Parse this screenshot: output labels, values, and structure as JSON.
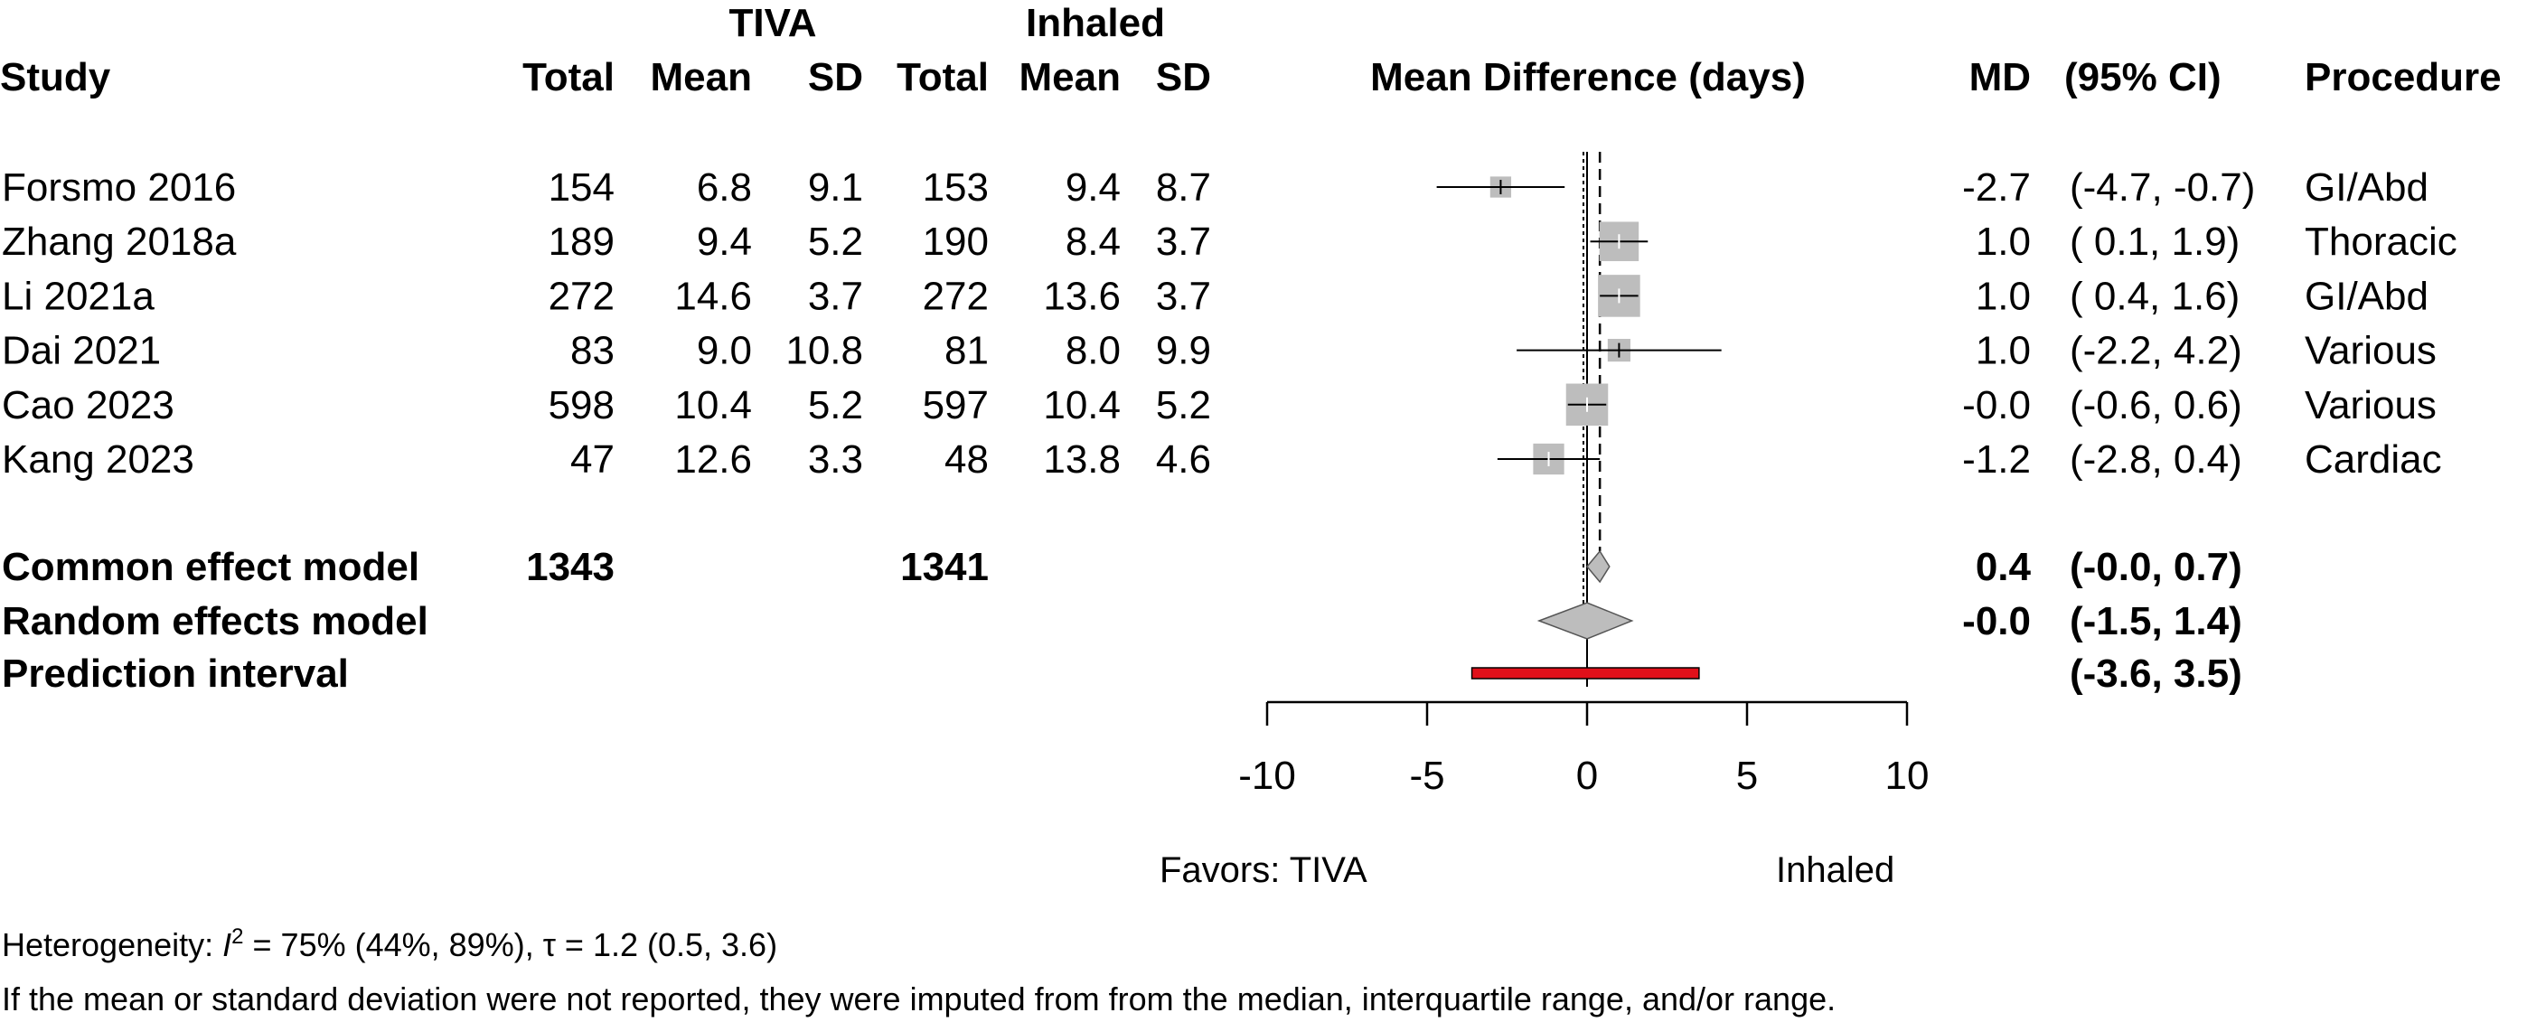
{
  "chart_data": {
    "type": "forest",
    "headers": {
      "group1": "TIVA",
      "group2": "Inhaled",
      "study": "Study",
      "total1": "Total",
      "mean1": "Mean",
      "sd1": "SD",
      "total2": "Total",
      "mean2": "Mean",
      "sd2": "SD",
      "plot": "Mean Difference (days)",
      "md": "MD",
      "ci": "(95% CI)",
      "procedure": "Procedure"
    },
    "studies": [
      {
        "study": "Forsmo 2016",
        "total1": "154",
        "mean1": "6.8",
        "sd1": "9.1",
        "total2": "153",
        "mean2": "9.4",
        "sd2": "8.7",
        "md": -2.7,
        "lower": -4.7,
        "upper": -0.7,
        "weight": 6.0,
        "md_text": "-2.7",
        "ci_text": "(-4.7, -0.7)",
        "procedure": "GI/Abd"
      },
      {
        "study": "Zhang 2018a",
        "total1": "189",
        "mean1": "9.4",
        "sd1": "5.2",
        "total2": "190",
        "mean2": "8.4",
        "sd2": "3.7",
        "md": 1.0,
        "lower": 0.1,
        "upper": 1.9,
        "weight": 21.0,
        "md_text": "1.0",
        "ci_text": "( 0.1,  1.9)",
        "procedure": "Thoracic"
      },
      {
        "study": "Li 2021a",
        "total1": "272",
        "mean1": "14.6",
        "sd1": "3.7",
        "total2": "272",
        "mean2": "13.6",
        "sd2": "3.7",
        "md": 1.0,
        "lower": 0.4,
        "upper": 1.6,
        "weight": 24.0,
        "md_text": "1.0",
        "ci_text": "( 0.4,  1.6)",
        "procedure": "GI/Abd"
      },
      {
        "study": "Dai 2021",
        "total1": "83",
        "mean1": "9.0",
        "sd1": "10.8",
        "total2": "81",
        "mean2": "8.0",
        "sd2": "9.9",
        "md": 1.0,
        "lower": -2.2,
        "upper": 4.2,
        "weight": 7.0,
        "md_text": "1.0",
        "ci_text": "(-2.2,  4.2)",
        "procedure": "Various"
      },
      {
        "study": "Cao 2023",
        "total1": "598",
        "mean1": "10.4",
        "sd1": "5.2",
        "total2": "597",
        "mean2": "10.4",
        "sd2": "5.2",
        "md": 0.0,
        "lower": -0.6,
        "upper": 0.6,
        "weight": 24.0,
        "md_text": "-0.0",
        "ci_text": "(-0.6,  0.6)",
        "procedure": "Various"
      },
      {
        "study": "Kang 2023",
        "total1": "47",
        "mean1": "12.6",
        "sd1": "3.3",
        "total2": "48",
        "mean2": "13.8",
        "sd2": "4.6",
        "md": -1.2,
        "lower": -2.8,
        "upper": 0.4,
        "weight": 13.0,
        "md_text": "-1.2",
        "ci_text": "(-2.8,  0.4)",
        "procedure": "Cardiac"
      }
    ],
    "common": {
      "label": "Common effect model",
      "total1": "1343",
      "total2": "1341",
      "md": 0.4,
      "lower": 0.0,
      "upper": 0.7,
      "md_text": "0.4",
      "ci_text": "(-0.0,  0.7)"
    },
    "random": {
      "label": "Random effects model",
      "md": 0.0,
      "lower": -1.5,
      "upper": 1.4,
      "md_text": "-0.0",
      "ci_text": "(-1.5,  1.4)"
    },
    "prediction": {
      "label": "Prediction interval",
      "lower": -3.6,
      "upper": 3.5,
      "ci_text": "(-3.6,  3.5)"
    },
    "xaxis": {
      "ticks": [
        -10,
        -5,
        0,
        5,
        10
      ],
      "tick_labels": [
        "-10",
        "-5",
        "0",
        "5",
        "10"
      ],
      "xlim": [
        -10,
        10
      ]
    },
    "favors_left": "Favors: TIVA",
    "favors_right": "Inhaled",
    "heterogeneity": {
      "prefix": "Heterogeneity: ",
      "symbol": "I",
      "sup": "2",
      "rest": " = 75% (44%, 89%), τ = 1.2 (0.5, 3.6)"
    },
    "footnote": "If the mean or standard deviation were not reported, they were imputed from from the median, interquartile range, and/or range.",
    "colors": {
      "square": "#bdbdbd",
      "diamond": "#bdbdbd",
      "prediction": "#e0101a",
      "line": "#000000"
    }
  }
}
